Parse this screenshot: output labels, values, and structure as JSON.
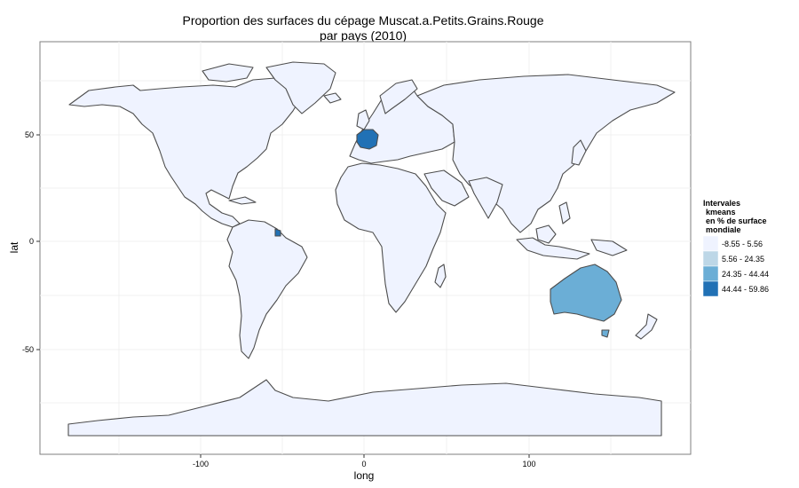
{
  "map": {
    "title_line1": "Proportion des surfaces du cépage Muscat.a.Petits.Grains.Rouge",
    "title_line2": "par pays (2010)",
    "xlabel": "long",
    "ylabel": "lat",
    "x_ticks": [
      "-100",
      "0",
      "100"
    ],
    "y_ticks": [
      "50",
      "0",
      "-50"
    ],
    "xlim": [
      -180,
      180
    ],
    "ylim": [
      -90,
      85
    ],
    "legend": {
      "title_lines": [
        "Intervales",
        "kmeans",
        "en % de surface",
        "mondiale"
      ],
      "items": [
        {
          "label": "-8.55 - 5.56",
          "color": "#eff3ff"
        },
        {
          "label": "5.56 - 24.35",
          "color": "#bdd7e7"
        },
        {
          "label": "24.35 - 44.44",
          "color": "#6baed6"
        },
        {
          "label": "44.44 - 59.86",
          "color": "#2171b5"
        }
      ]
    },
    "highlighted": [
      {
        "region": "France",
        "bin": 3
      },
      {
        "region": "Australia",
        "bin": 2
      },
      {
        "region": "French Guiana",
        "bin": 3
      }
    ],
    "colors": {
      "panel_bg": "#ffffff",
      "grid": "#f2f2f2",
      "border": "#7f7f7f",
      "outline": "#4d4d4d"
    }
  }
}
